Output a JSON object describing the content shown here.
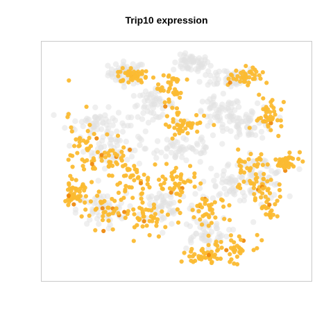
{
  "chart_data": {
    "type": "scatter",
    "title": "Trip10 expression",
    "xlabel": "",
    "ylabel": "",
    "axes_visible": false,
    "grid": false,
    "legend": "none",
    "colors": {
      "background_cells": "#e2e2e2",
      "expressing_cells": "#fbbb32",
      "high_expression": "#ee8a10",
      "panel_border": "#c8c8c8"
    },
    "series": [
      {
        "role": "non-expressing cells (grey)",
        "regions": [
          [
            [
              0.3,
              0.88
            ],
            [
              0.06,
              0.04
            ]
          ],
          [
            [
              0.55,
              0.92
            ],
            [
              0.06,
              0.03
            ]
          ],
          [
            [
              0.7,
              0.86
            ],
            [
              0.09,
              0.04
            ]
          ],
          [
            [
              0.18,
              0.66
            ],
            [
              0.1,
              0.05
            ]
          ],
          [
            [
              0.25,
              0.55
            ],
            [
              0.1,
              0.07
            ]
          ],
          [
            [
              0.4,
              0.74
            ],
            [
              0.07,
              0.05
            ]
          ],
          [
            [
              0.52,
              0.55
            ],
            [
              0.12,
              0.06
            ]
          ],
          [
            [
              0.66,
              0.7
            ],
            [
              0.08,
              0.06
            ]
          ],
          [
            [
              0.78,
              0.66
            ],
            [
              0.08,
              0.06
            ]
          ],
          [
            [
              0.82,
              0.42
            ],
            [
              0.08,
              0.08
            ]
          ],
          [
            [
              0.2,
              0.28
            ],
            [
              0.08,
              0.06
            ]
          ],
          [
            [
              0.45,
              0.3
            ],
            [
              0.1,
              0.07
            ]
          ],
          [
            [
              0.7,
              0.4
            ],
            [
              0.09,
              0.07
            ]
          ],
          [
            [
              0.6,
              0.18
            ],
            [
              0.08,
              0.06
            ]
          ]
        ]
      },
      {
        "role": "expressing cells (orange)",
        "regions": [
          [
            [
              0.32,
              0.87
            ],
            [
              0.05,
              0.03
            ]
          ],
          [
            [
              0.47,
              0.8
            ],
            [
              0.05,
              0.08
            ]
          ],
          [
            [
              0.53,
              0.65
            ],
            [
              0.08,
              0.04
            ]
          ],
          [
            [
              0.12,
              0.55
            ],
            [
              0.05,
              0.14
            ]
          ],
          [
            [
              0.22,
              0.5
            ],
            [
              0.07,
              0.07
            ]
          ],
          [
            [
              0.33,
              0.4
            ],
            [
              0.08,
              0.08
            ]
          ],
          [
            [
              0.22,
              0.28
            ],
            [
              0.08,
              0.07
            ]
          ],
          [
            [
              0.38,
              0.25
            ],
            [
              0.07,
              0.06
            ]
          ],
          [
            [
              0.5,
              0.4
            ],
            [
              0.07,
              0.06
            ]
          ],
          [
            [
              0.62,
              0.28
            ],
            [
              0.08,
              0.07
            ]
          ],
          [
            [
              0.72,
              0.12
            ],
            [
              0.08,
              0.05
            ]
          ],
          [
            [
              0.6,
              0.08
            ],
            [
              0.06,
              0.03
            ]
          ],
          [
            [
              0.78,
              0.45
            ],
            [
              0.06,
              0.08
            ]
          ],
          [
            [
              0.85,
              0.33
            ],
            [
              0.05,
              0.08
            ]
          ],
          [
            [
              0.85,
              0.68
            ],
            [
              0.04,
              0.06
            ]
          ],
          [
            [
              0.76,
              0.86
            ],
            [
              0.05,
              0.04
            ]
          ],
          [
            [
              0.92,
              0.49
            ],
            [
              0.04,
              0.04
            ]
          ],
          [
            [
              0.1,
              0.35
            ],
            [
              0.03,
              0.04
            ]
          ]
        ]
      }
    ]
  }
}
